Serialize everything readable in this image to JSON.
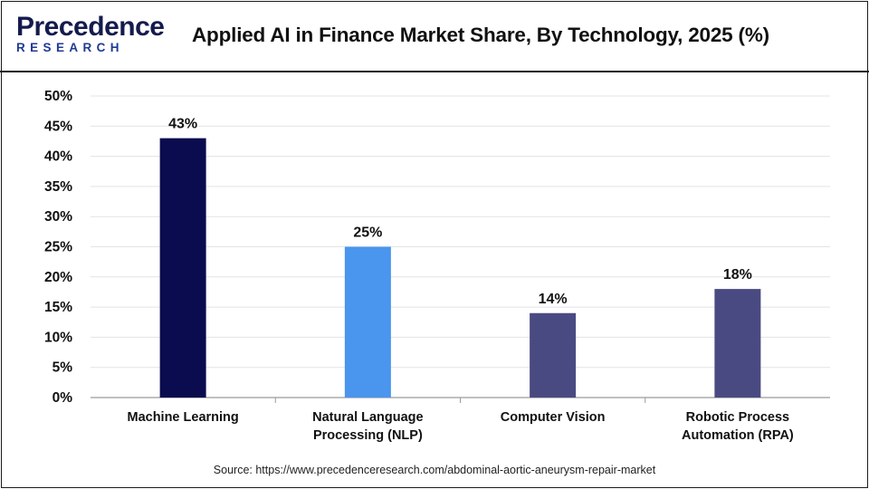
{
  "header": {
    "logo_word": "Precedence",
    "logo_sub": "RESEARCH",
    "title": "Applied AI in Finance Market Share, By Technology, 2025 (%)"
  },
  "source_text": "Source: https://www.precedenceresearch.com/abdominal-aortic-aneurysm-repair-market",
  "chart_data": {
    "type": "bar",
    "title": "Applied AI in Finance Market Share, By Technology, 2025 (%)",
    "categories": [
      [
        "Machine Learning"
      ],
      [
        "Natural Language",
        "Processing (NLP)"
      ],
      [
        "Computer Vision"
      ],
      [
        "Robotic Process",
        "Automation (RPA)"
      ]
    ],
    "values": [
      43,
      25,
      14,
      18
    ],
    "value_labels": [
      "43%",
      "25%",
      "14%",
      "18%"
    ],
    "colors": [
      "#0b0b4f",
      "#4a95ee",
      "#4a4a82",
      "#4a4a82"
    ],
    "ylim": [
      0,
      50
    ],
    "yticks": [
      "0%",
      "5%",
      "10%",
      "15%",
      "20%",
      "25%",
      "30%",
      "35%",
      "40%",
      "45%",
      "50%"
    ],
    "grid": true,
    "legend": "none"
  }
}
